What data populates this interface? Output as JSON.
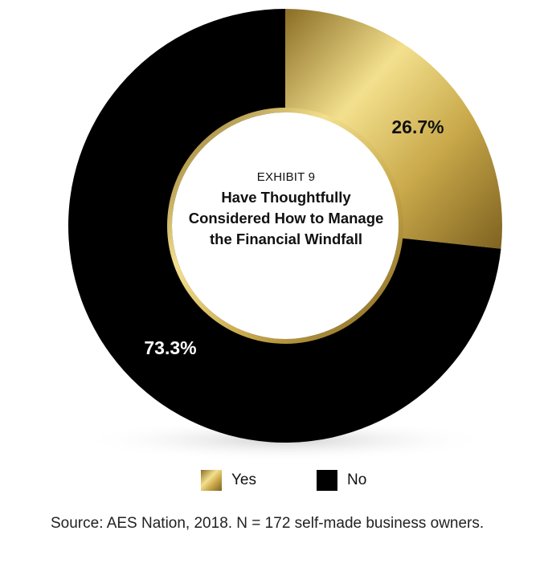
{
  "chart_data": {
    "type": "pie",
    "style": "donut",
    "categories": [
      "Yes",
      "No"
    ],
    "values": [
      26.7,
      73.3
    ],
    "units": "%",
    "data_labels": [
      "26.7%",
      "73.3%"
    ],
    "exhibit": "EXHIBIT 9",
    "title": "Have Thoughtfully Considered How to Manage the Financial Windfall",
    "legend_position": "bottom",
    "colors": {
      "Yes": "#c9a94a",
      "No": "#000000",
      "ring": "#c9a94a"
    }
  },
  "legend": [
    {
      "label": "Yes",
      "color": "#c9a94a"
    },
    {
      "label": "No",
      "color": "#000000"
    }
  ],
  "source": "Source: AES Nation, 2018. N = 172 self-made business owners."
}
